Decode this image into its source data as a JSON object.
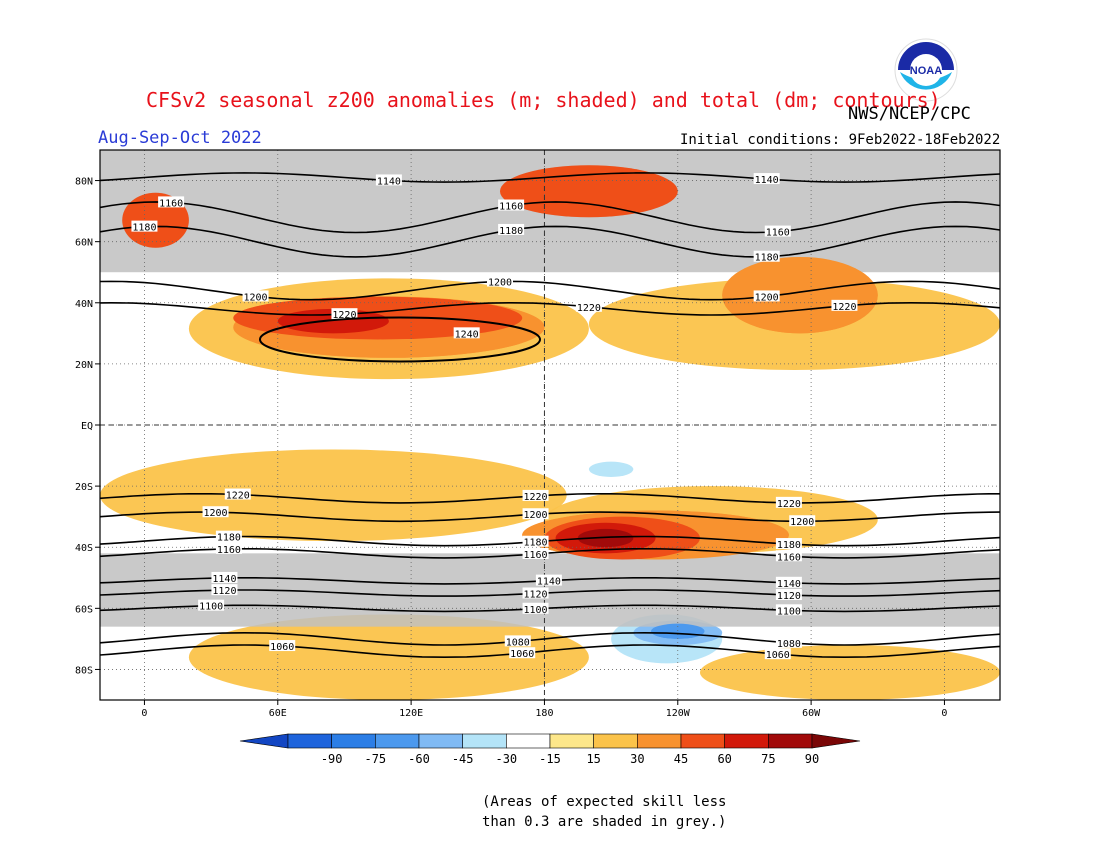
{
  "header": {
    "title": "CFSv2 seasonal z200 anomalies (m; shaded) and total (dm; contours)",
    "agency": "NWS/NCEP/CPC",
    "season": "Aug-Sep-Oct 2022",
    "initial_conditions": "Initial conditions: 9Feb2022-18Feb2022",
    "logo_text": "NOAA"
  },
  "axes": {
    "lat_labels": [
      "80N",
      "60N",
      "40N",
      "20N",
      "EQ",
      "20S",
      "40S",
      "60S",
      "80S"
    ],
    "lat_values": [
      80,
      60,
      40,
      20,
      0,
      -20,
      -40,
      -60,
      -80
    ],
    "lon_labels": [
      "0",
      "60E",
      "120E",
      "180",
      "120W",
      "60W",
      "0"
    ],
    "lon_values": [
      0,
      60,
      120,
      180,
      240,
      300,
      360
    ],
    "lon_range": [
      -20,
      385
    ],
    "lat_range": [
      -90,
      90
    ]
  },
  "contours": [
    {
      "label": "1140",
      "lat": 81,
      "amp": 1.5,
      "phase": 0,
      "labels_at": [
        110,
        280
      ]
    },
    {
      "label": "1160",
      "lat": 68,
      "amp": 5,
      "phase": 40,
      "labels_at": [
        12,
        165,
        285
      ]
    },
    {
      "label": "1180",
      "lat": 60,
      "amp": 5,
      "phase": 40,
      "labels_at": [
        0,
        165,
        280
      ]
    },
    {
      "label": "1200",
      "lat": 44,
      "amp": 3,
      "phase": 60,
      "labels_at": [
        50,
        160,
        280
      ]
    },
    {
      "label": "1220",
      "lat": 38,
      "amp": 2,
      "phase": 60,
      "labels_at": [
        90,
        200,
        315
      ]
    },
    {
      "label": "1240",
      "lat": 30,
      "amp": 0,
      "phase": 0,
      "labels_at": [
        145
      ]
    },
    {
      "label": "1220",
      "lat": -24,
      "amp": 1.5,
      "phase": 20,
      "labels_at": [
        42,
        176,
        290
      ]
    },
    {
      "label": "1200",
      "lat": -30,
      "amp": 1.5,
      "phase": 20,
      "labels_at": [
        32,
        176,
        296
      ]
    },
    {
      "label": "1180",
      "lat": -38,
      "amp": 1.5,
      "phase": 0,
      "labels_at": [
        38,
        176,
        290
      ]
    },
    {
      "label": "1160",
      "lat": -42,
      "amp": 1.5,
      "phase": 0,
      "labels_at": [
        38,
        176,
        290
      ]
    },
    {
      "label": "1140",
      "lat": -51,
      "amp": 1,
      "phase": 0,
      "labels_at": [
        36,
        182,
        290
      ]
    },
    {
      "label": "1120",
      "lat": -55,
      "amp": 1,
      "phase": 0,
      "labels_at": [
        36,
        176,
        290
      ]
    },
    {
      "label": "1100",
      "lat": -60,
      "amp": 1,
      "phase": 0,
      "labels_at": [
        30,
        176,
        290
      ]
    },
    {
      "label": "1080",
      "lat": -70,
      "amp": 2,
      "phase": 0,
      "labels_at": [
        168,
        290
      ]
    },
    {
      "label": "1060",
      "lat": -74,
      "amp": 2,
      "phase": 0,
      "labels_at": [
        62,
        170,
        285
      ]
    }
  ],
  "anomaly_regions": [
    {
      "value": 15,
      "lon": [
        -20,
        385
      ],
      "lat": [
        -90,
        90
      ],
      "rx": 0,
      "ry": 0,
      "shape": "rect"
    },
    {
      "value": 30,
      "lon": [
        20,
        200
      ],
      "lat": [
        15,
        48
      ],
      "shape": "ellipse"
    },
    {
      "value": 30,
      "lon": [
        200,
        385
      ],
      "lat": [
        18,
        48
      ],
      "shape": "ellipse"
    },
    {
      "value": 30,
      "lon": [
        -20,
        190
      ],
      "lat": [
        -38,
        -8
      ],
      "shape": "ellipse"
    },
    {
      "value": 30,
      "lon": [
        180,
        330
      ],
      "lat": [
        -42,
        -20
      ],
      "shape": "ellipse"
    },
    {
      "value": 30,
      "lon": [
        20,
        200
      ],
      "lat": [
        -90,
        -62
      ],
      "shape": "ellipse"
    },
    {
      "value": 30,
      "lon": [
        250,
        385
      ],
      "lat": [
        -90,
        -72
      ],
      "shape": "ellipse"
    },
    {
      "value": 45,
      "lon": [
        40,
        180
      ],
      "lat": [
        22,
        42
      ],
      "shape": "ellipse"
    },
    {
      "value": 45,
      "lon": [
        260,
        330
      ],
      "lat": [
        30,
        55
      ],
      "shape": "ellipse"
    },
    {
      "value": 45,
      "lon": [
        170,
        290
      ],
      "lat": [
        -44,
        -28
      ],
      "shape": "ellipse"
    },
    {
      "value": 60,
      "lon": [
        40,
        170
      ],
      "lat": [
        28,
        42
      ],
      "shape": "ellipse"
    },
    {
      "value": 60,
      "lon": [
        160,
        240
      ],
      "lat": [
        68,
        85
      ],
      "shape": "ellipse"
    },
    {
      "value": 60,
      "lon": [
        -10,
        20
      ],
      "lat": [
        58,
        76
      ],
      "shape": "ellipse"
    },
    {
      "value": 60,
      "lon": [
        180,
        250
      ],
      "lat": [
        -44,
        -30
      ],
      "shape": "ellipse"
    },
    {
      "value": 75,
      "lon": [
        60,
        110
      ],
      "lat": [
        30,
        38
      ],
      "shape": "ellipse"
    },
    {
      "value": 75,
      "lon": [
        185,
        230
      ],
      "lat": [
        -42,
        -32
      ],
      "shape": "ellipse"
    },
    {
      "value": 90,
      "lon": [
        195,
        220
      ],
      "lat": [
        -40,
        -34
      ],
      "shape": "ellipse"
    },
    {
      "value": -15,
      "lon": [
        200,
        220
      ],
      "lat": [
        -17,
        -12
      ],
      "shape": "ellipse"
    },
    {
      "value": -15,
      "lon": [
        210,
        260
      ],
      "lat": [
        -78,
        -62
      ],
      "shape": "ellipse"
    },
    {
      "value": -30,
      "lon": [
        220,
        260
      ],
      "lat": [
        -72,
        -64
      ],
      "shape": "ellipse"
    },
    {
      "value": -45,
      "lon": [
        228,
        252
      ],
      "lat": [
        -70,
        -65
      ],
      "shape": "ellipse"
    }
  ],
  "low_skill_regions": [
    {
      "lon": [
        -20,
        385
      ],
      "lat": [
        50,
        90
      ]
    },
    {
      "lon": [
        -20,
        385
      ],
      "lat": [
        -66,
        -42
      ]
    }
  ],
  "colorbar": {
    "ticks": [
      "-90",
      "-75",
      "-60",
      "-45",
      "-30",
      "-15",
      "15",
      "30",
      "45",
      "60",
      "75",
      "90"
    ],
    "colors": [
      "#1e64dc",
      "#2c7ee6",
      "#4c99ee",
      "#80baf4",
      "#b4e4f8",
      "#ffffff",
      "#fde78a",
      "#fbc34a",
      "#f8922f",
      "#ef4f18",
      "#d2190a",
      "#a10a0a"
    ],
    "arrow_low": "#1246c3",
    "arrow_high": "#7a0606"
  },
  "footnote": "(Areas of expected skill less\nthan 0.3 are shaded in grey.)"
}
